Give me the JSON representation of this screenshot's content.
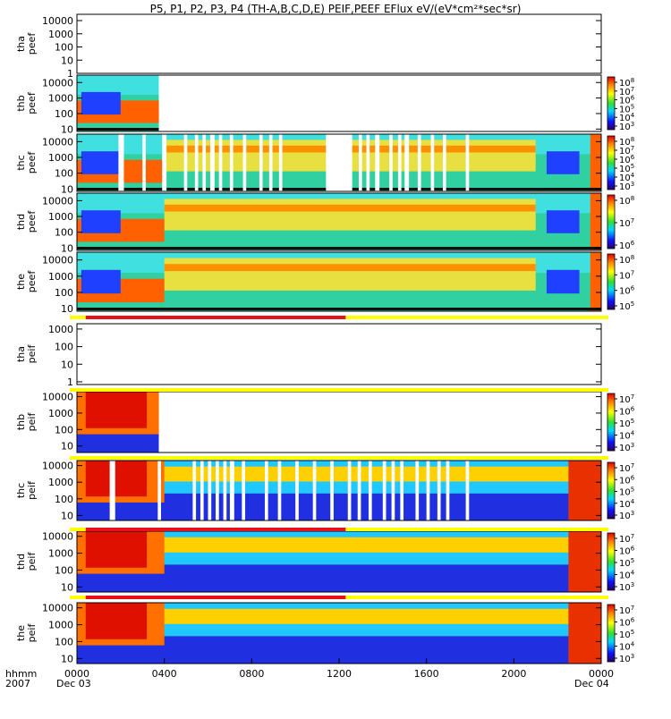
{
  "title": "P5, P1, P2, P3, P4 (TH-A,B,C,D,E) PEIF,PEEF EFlux eV/(eV*cm²*sec*sr)",
  "xaxis": {
    "row1_label": "hhmm",
    "row2_label": "2007",
    "ticks": [
      "0000",
      "0400",
      "0800",
      "1200",
      "1600",
      "2000",
      "0000"
    ],
    "tick_hours": [
      0,
      4,
      8,
      12,
      16,
      20,
      24
    ],
    "start_date": "Dec 03",
    "end_date": "Dec 04"
  },
  "colors": {
    "bar_red": "#e8101a",
    "bar_yellow": "#ffff00"
  },
  "chart_data": [
    {
      "type": "heatmap",
      "ylabel": "tha\npeef",
      "yticks": [
        "10000",
        "1000",
        "100",
        "10",
        "1"
      ],
      "ylim": [
        1,
        30000
      ],
      "data": "none",
      "colorbar": null
    },
    {
      "type": "heatmap",
      "ylabel": "thb\npeef",
      "yticks": [
        "10000",
        "1000",
        "100",
        "10"
      ],
      "ylim": [
        7,
        30000
      ],
      "data_hours": [
        0,
        3.75
      ],
      "colorbar": {
        "ticks": [
          "10^8",
          "10^7",
          "10^6",
          "10^5",
          "10^4",
          "10^3"
        ]
      }
    },
    {
      "type": "heatmap",
      "ylabel": "thc\npeef",
      "yticks": [
        "10000",
        "1000",
        "100",
        "10"
      ],
      "ylim": [
        7,
        30000
      ],
      "data_gaps_hours": [
        [
          1.9,
          2.15
        ],
        [
          3.0,
          3.15
        ],
        [
          3.9,
          4.1
        ],
        [
          4.9,
          5.05
        ],
        [
          5.4,
          5.55
        ],
        [
          5.75,
          5.9
        ],
        [
          6.1,
          6.3
        ],
        [
          6.5,
          6.65
        ],
        [
          7.0,
          7.15
        ],
        [
          7.6,
          7.75
        ],
        [
          8.35,
          8.5
        ],
        [
          8.8,
          8.95
        ],
        [
          9.25,
          9.4
        ],
        [
          11.4,
          12.6
        ],
        [
          12.9,
          13.05
        ],
        [
          13.25,
          13.4
        ],
        [
          13.65,
          13.85
        ],
        [
          14.3,
          14.45
        ],
        [
          14.7,
          14.85
        ],
        [
          15.0,
          15.2
        ],
        [
          15.6,
          15.75
        ],
        [
          16.2,
          16.35
        ],
        [
          16.75,
          16.9
        ],
        [
          17.8,
          17.95
        ]
      ],
      "colorbar": {
        "ticks": [
          "10^8",
          "10^7",
          "10^6",
          "10^5",
          "10^4",
          "10^3"
        ]
      }
    },
    {
      "type": "heatmap",
      "ylabel": "thd\npeef",
      "yticks": [
        "10000",
        "1000",
        "100",
        "10"
      ],
      "ylim": [
        7,
        30000
      ],
      "colorbar": {
        "ticks": [
          "10^8",
          "10^7",
          "10^6"
        ]
      }
    },
    {
      "type": "heatmap",
      "ylabel": "the\npeef",
      "yticks": [
        "10000",
        "1000",
        "100",
        "10"
      ],
      "ylim": [
        7,
        30000
      ],
      "colorbar": {
        "ticks": [
          "10^8",
          "10^7",
          "10^6",
          "10^5"
        ]
      }
    },
    {
      "type": "heatmap",
      "ylabel": "tha\npeif",
      "yticks": [
        "1000",
        "100",
        "10",
        "1"
      ],
      "ylim": [
        0.7,
        2000
      ],
      "data": "none",
      "colorbar": null
    },
    {
      "type": "heatmap",
      "ylabel": "thb\npeif",
      "yticks": [
        "10000",
        "1000",
        "100",
        "10"
      ],
      "ylim": [
        4,
        20000
      ],
      "data_hours": [
        0,
        3.75
      ],
      "colorbar": {
        "ticks": [
          "10^7",
          "10^6",
          "10^5",
          "10^4",
          "10^3"
        ]
      }
    },
    {
      "type": "heatmap",
      "ylabel": "thc\npeif",
      "yticks": [
        "10000",
        "1000",
        "100",
        "10"
      ],
      "ylim": [
        5,
        20000
      ],
      "data_gaps_hours": [
        [
          1.5,
          1.75
        ],
        [
          3.7,
          3.85
        ],
        [
          5.3,
          5.45
        ],
        [
          5.65,
          5.8
        ],
        [
          6.0,
          6.15
        ],
        [
          6.35,
          6.5
        ],
        [
          6.7,
          6.85
        ],
        [
          7.0,
          7.2
        ],
        [
          7.55,
          7.7
        ],
        [
          8.6,
          8.75
        ],
        [
          9.2,
          9.35
        ],
        [
          10.0,
          10.15
        ],
        [
          10.8,
          10.95
        ],
        [
          11.6,
          11.75
        ],
        [
          12.4,
          12.55
        ],
        [
          12.85,
          13.0
        ],
        [
          13.35,
          13.5
        ],
        [
          14.0,
          14.15
        ],
        [
          14.4,
          14.55
        ],
        [
          14.8,
          14.95
        ],
        [
          15.5,
          15.65
        ],
        [
          16.0,
          16.15
        ],
        [
          16.5,
          16.65
        ],
        [
          16.9,
          17.05
        ],
        [
          17.8,
          17.95
        ]
      ],
      "colorbar": {
        "ticks": [
          "10^7",
          "10^6",
          "10^5",
          "10^4",
          "10^3"
        ]
      }
    },
    {
      "type": "heatmap",
      "ylabel": "thd\npeif",
      "yticks": [
        "10000",
        "1000",
        "100",
        "10"
      ],
      "ylim": [
        5,
        20000
      ],
      "colorbar": {
        "ticks": [
          "10^7",
          "10^6",
          "10^5",
          "10^4",
          "10^3"
        ]
      }
    },
    {
      "type": "heatmap",
      "ylabel": "the\npeif",
      "yticks": [
        "10000",
        "1000",
        "100",
        "10"
      ],
      "ylim": [
        5,
        20000
      ],
      "colorbar": {
        "ticks": [
          "10^7",
          "10^6",
          "10^5",
          "10^4",
          "10^3"
        ]
      }
    }
  ],
  "mode_bars": [
    {
      "after_panel": 4,
      "red_hours": [
        0.4,
        12.3
      ]
    },
    {
      "after_panel": 5,
      "red_hours": null
    },
    {
      "after_panel": 6,
      "red_hours": null
    },
    {
      "after_panel": 7,
      "red_hours": [
        0.4,
        12.3
      ]
    },
    {
      "after_panel": 8,
      "red_hours": [
        0.4,
        12.3
      ]
    }
  ]
}
